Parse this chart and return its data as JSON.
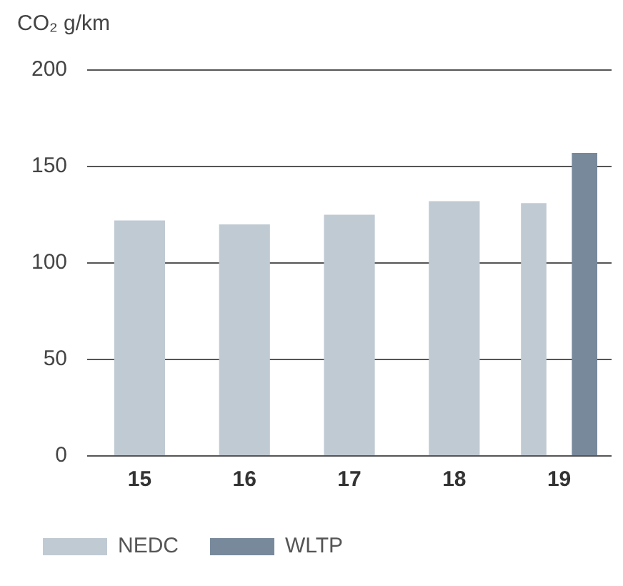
{
  "chart_data": {
    "type": "bar",
    "ylabel": "CO₂ g/km",
    "categories": [
      "15",
      "16",
      "17",
      "18",
      "19"
    ],
    "series": [
      {
        "name": "NEDC",
        "color": "#c0cad3",
        "values": [
          122,
          120,
          125,
          132,
          131
        ]
      },
      {
        "name": "WLTP",
        "color": "#78899c",
        "values": [
          null,
          null,
          null,
          null,
          157
        ]
      }
    ],
    "ylim": [
      0,
      200
    ],
    "yticks": [
      0,
      50,
      100,
      150,
      200
    ],
    "grid": "y",
    "legend": "bottom"
  }
}
